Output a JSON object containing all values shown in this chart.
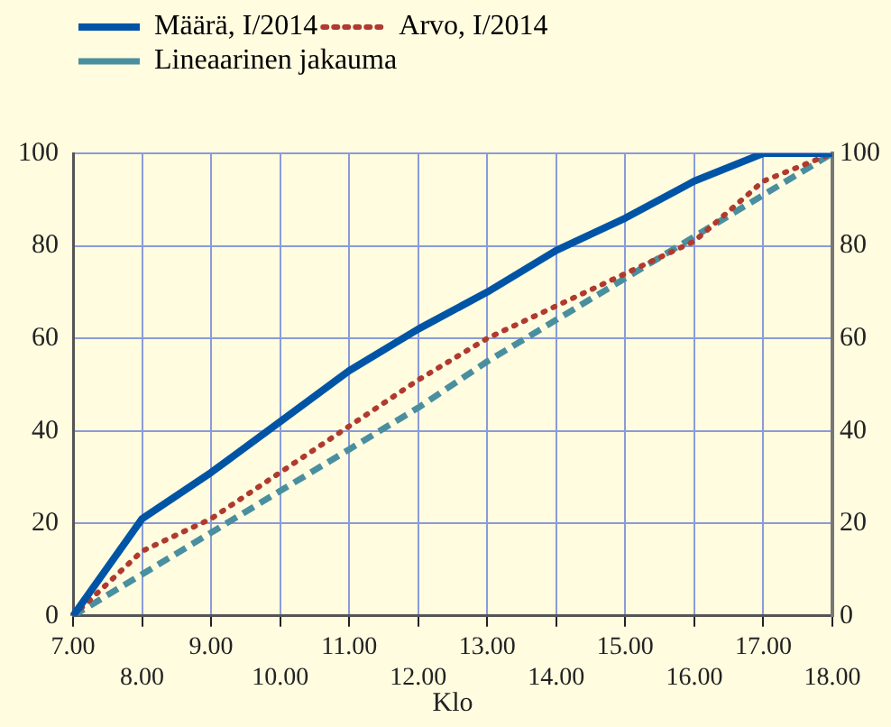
{
  "chart_data": {
    "type": "line",
    "xlabel": "Klo",
    "categories": [
      "7.00",
      "8.00",
      "9.00",
      "10.00",
      "11.00",
      "12.00",
      "13.00",
      "14.00",
      "15.00",
      "16.00",
      "17.00",
      "18.00"
    ],
    "series": [
      {
        "name": "Määrä, I/2014",
        "color": "#0054a6",
        "line_style": "solid",
        "values": [
          0,
          21,
          31,
          42,
          53,
          62,
          70,
          79,
          86,
          94,
          100,
          100
        ]
      },
      {
        "name": "Arvo, I/2014",
        "color": "#b03a2e",
        "line_style": "dotted",
        "values": [
          0,
          14,
          21,
          31,
          41,
          51,
          60,
          67,
          74,
          81,
          94,
          100
        ]
      },
      {
        "name": "Lineaarinen jakauma",
        "color": "#4a8fa0",
        "line_style": "dashed",
        "values": [
          0,
          9,
          18,
          27,
          36,
          45,
          55,
          64,
          73,
          82,
          91,
          100
        ]
      }
    ],
    "ylim": [
      0,
      100
    ],
    "yticks": [
      0,
      20,
      40,
      60,
      80,
      100
    ],
    "y2lim": [
      0,
      100
    ],
    "y2ticks": [
      0,
      20,
      40,
      60,
      80,
      100
    ],
    "grid": true,
    "legend": "top left",
    "marker": "none"
  }
}
